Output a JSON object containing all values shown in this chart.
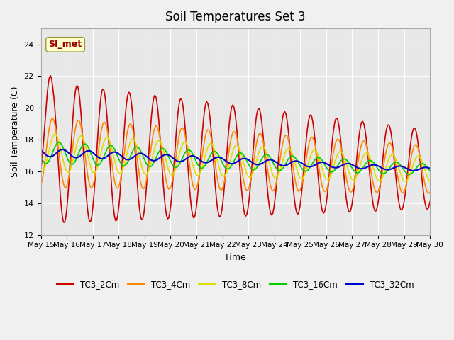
{
  "title": "Soil Temperatures Set 3",
  "xlabel": "Time",
  "ylabel": "Soil Temperature (C)",
  "ylim": [
    12,
    25
  ],
  "yticks": [
    12,
    14,
    16,
    18,
    20,
    22,
    24
  ],
  "annotation_text": "SI_met",
  "series": {
    "TC3_2Cm": {
      "color": "#cc0000",
      "lw": 1.2
    },
    "TC3_4Cm": {
      "color": "#ff8800",
      "lw": 1.2
    },
    "TC3_8Cm": {
      "color": "#dddd00",
      "lw": 1.2
    },
    "TC3_16Cm": {
      "color": "#00cc00",
      "lw": 1.2
    },
    "TC3_32Cm": {
      "color": "#0000cc",
      "lw": 1.5
    }
  },
  "legend_colors": [
    "#cc0000",
    "#ff8800",
    "#dddd00",
    "#00cc00",
    "#0000cc"
  ],
  "legend_labels": [
    "TC3_2Cm",
    "TC3_4Cm",
    "TC3_8Cm",
    "TC3_16Cm",
    "TC3_32Cm"
  ],
  "xticklabels": [
    "May 15",
    "May 16",
    "May 17",
    "May 18",
    "May 19",
    "May 20",
    "May 21",
    "May 22",
    "May 23",
    "May 24",
    "May 25",
    "May 26",
    "May 27",
    "May 28",
    "May 29",
    "May 30"
  ],
  "num_days": 15
}
